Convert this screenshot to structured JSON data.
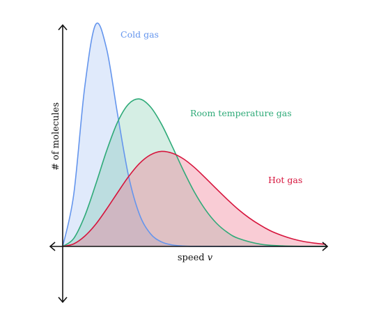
{
  "chart_data": {
    "type": "area",
    "title": "",
    "xlabel": "speed",
    "xlabel_var": "v",
    "ylabel": "# of molecules",
    "grid": false,
    "legend": "none",
    "xlim": [
      0,
      6
    ],
    "ylim": [
      -1.0,
      1.0
    ],
    "series": [
      {
        "name": "Cold gas",
        "color": "#6495ED",
        "fill": "#6495ED",
        "x": [
          0,
          0.25,
          0.5,
          0.75,
          1.0,
          1.25,
          1.5,
          1.75,
          2.0,
          2.25,
          2.5,
          2.75,
          3.0,
          3.5,
          4.0,
          5.0,
          6.0
        ],
        "y": [
          0.0,
          0.222,
          0.684,
          0.957,
          0.853,
          0.571,
          0.305,
          0.138,
          0.055,
          0.0196,
          0.0063,
          0.0018,
          0.0005,
          0.0,
          0.0,
          0.0,
          0.0
        ]
      },
      {
        "name": "Room temperature gas",
        "color": "#2EAA78",
        "fill": "#2EAA78",
        "x": [
          0,
          0.25,
          0.5,
          0.75,
          1.0,
          1.25,
          1.5,
          1.75,
          2.0,
          2.25,
          2.5,
          2.75,
          3.0,
          3.25,
          3.5,
          3.75,
          4.0,
          4.5,
          5.0,
          5.5,
          6.0
        ],
        "y": [
          0.0,
          0.034,
          0.13,
          0.266,
          0.412,
          0.536,
          0.614,
          0.636,
          0.602,
          0.528,
          0.43,
          0.328,
          0.235,
          0.159,
          0.101,
          0.061,
          0.035,
          0.01,
          0.0025,
          0.0005,
          0.0001
        ]
      },
      {
        "name": "Hot gas",
        "color": "#D6143C",
        "fill": "#F07890",
        "x": [
          0,
          0.25,
          0.5,
          0.75,
          1.0,
          1.25,
          1.5,
          1.75,
          2.0,
          2.25,
          2.5,
          2.75,
          3.0,
          3.25,
          3.5,
          3.75,
          4.0,
          4.25,
          4.5,
          4.75,
          5.0,
          5.25,
          5.5,
          5.75,
          6.0
        ],
        "y": [
          0.0,
          0.011,
          0.044,
          0.095,
          0.161,
          0.232,
          0.301,
          0.358,
          0.395,
          0.41,
          0.402,
          0.378,
          0.341,
          0.296,
          0.249,
          0.203,
          0.16,
          0.123,
          0.092,
          0.066,
          0.047,
          0.032,
          0.021,
          0.014,
          0.009
        ]
      }
    ]
  }
}
